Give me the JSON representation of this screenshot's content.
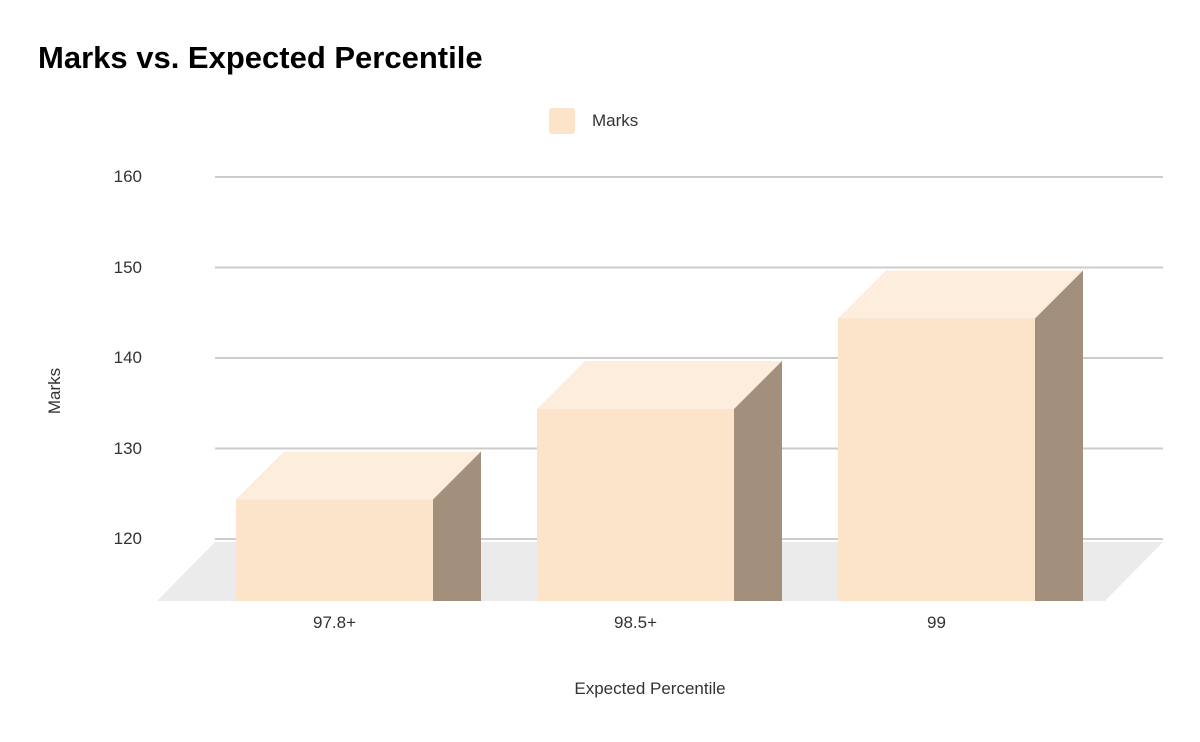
{
  "chart_data": {
    "type": "bar",
    "variant": "3d-column",
    "title": "Marks vs. Expected Percentile",
    "categories": [
      "97.8+",
      "98.5+",
      "99"
    ],
    "series": [
      {
        "name": "Marks",
        "values": [
          130,
          140,
          150
        ]
      }
    ],
    "xlabel": "Expected Percentile",
    "ylabel": "Marks",
    "ylim": [
      120,
      160
    ],
    "yticks": [
      120,
      130,
      140,
      150,
      160
    ],
    "grid": true,
    "legend_position": "top-center",
    "colors": {
      "bar_front": "#FCE4CB",
      "bar_top": "#FCEDDD",
      "bar_side": "#A3907C",
      "floor": "#EBEBEB",
      "gridline": "#CCCCCC",
      "title_text": "#000000",
      "label_text": "#333333",
      "background": "#FFFFFF"
    }
  }
}
